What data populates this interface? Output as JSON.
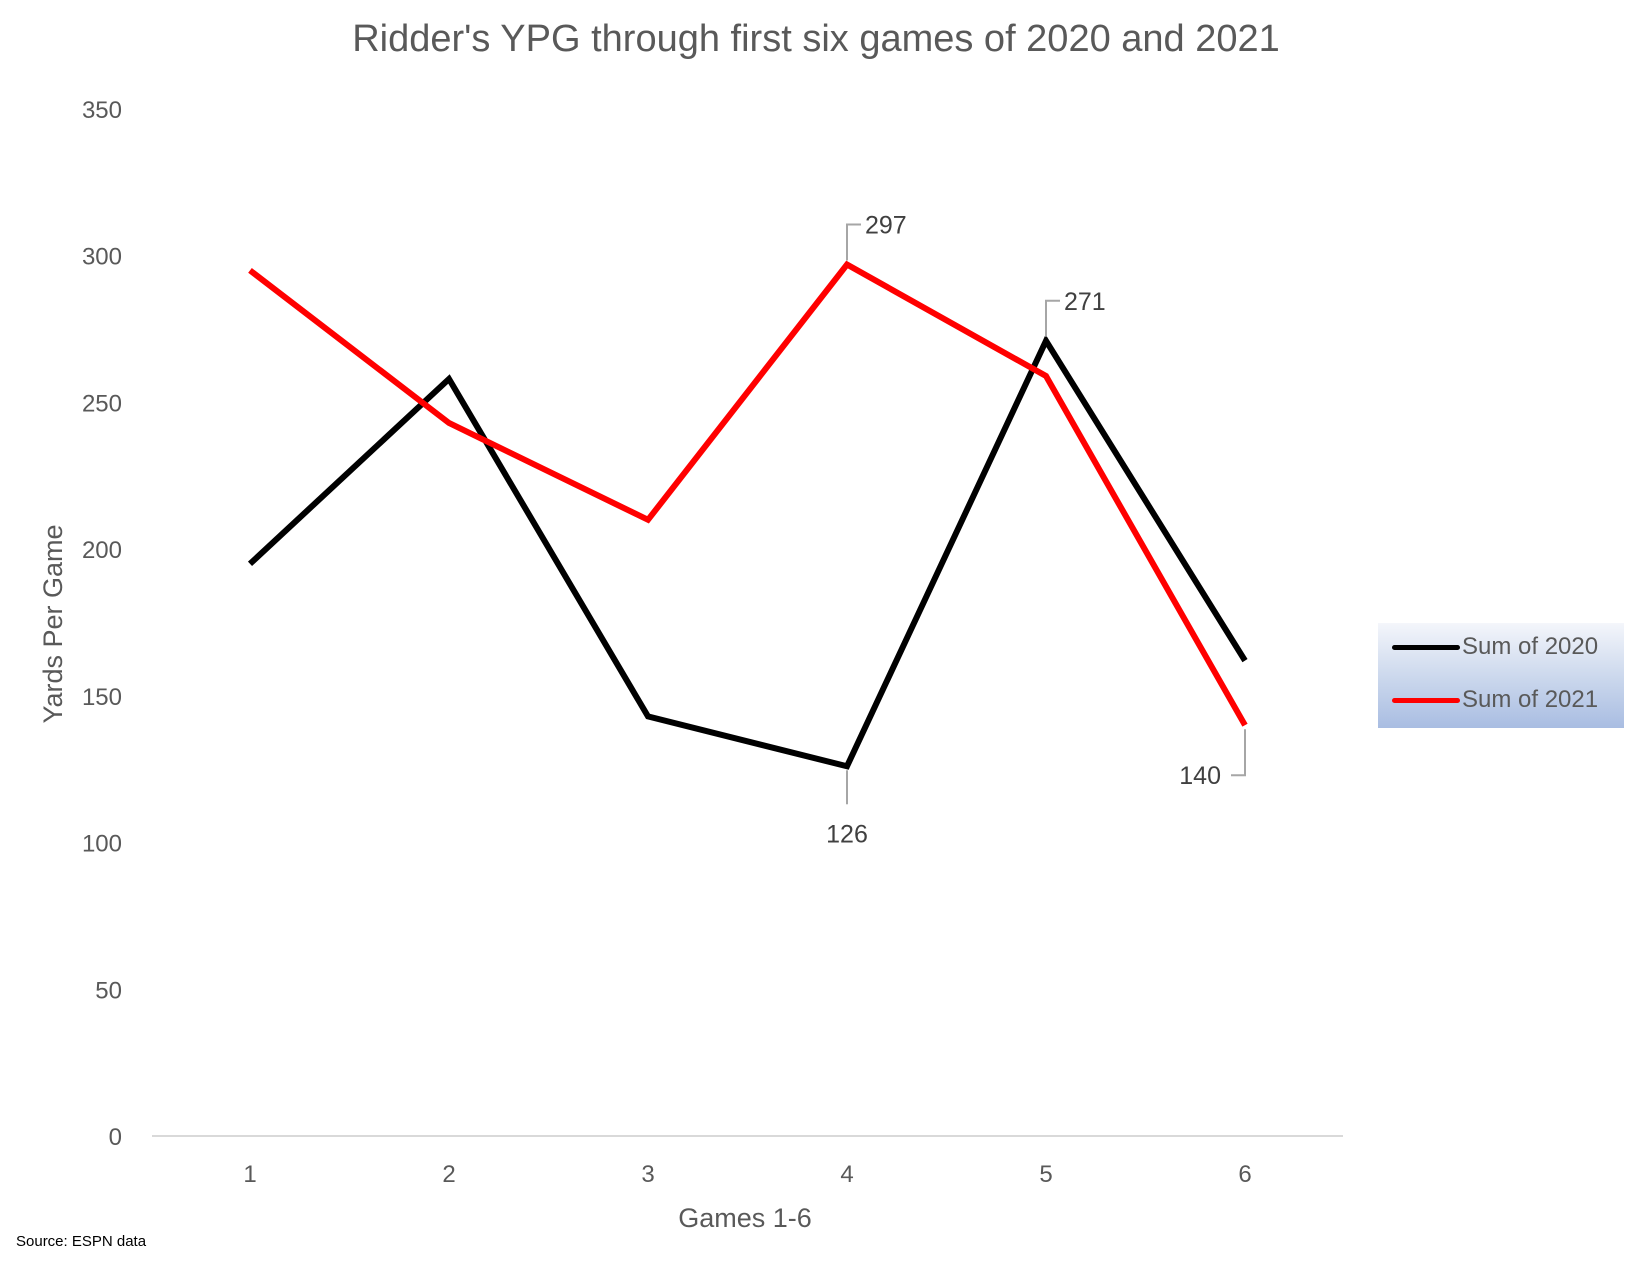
{
  "chart_data": {
    "type": "line",
    "title": "Ridder's YPG through first six games of 2020 and 2021",
    "xlabel": "Games 1-6",
    "ylabel": "Yards Per Game",
    "categories": [
      "1",
      "2",
      "3",
      "4",
      "5",
      "6"
    ],
    "ylim": [
      0,
      350
    ],
    "yticks": [
      0,
      50,
      100,
      150,
      200,
      250,
      300,
      350
    ],
    "grid": false,
    "legend_position": "right",
    "series": [
      {
        "name": "Sum of 2020",
        "color": "#000000",
        "values": [
          195,
          258,
          143,
          126,
          271,
          162
        ]
      },
      {
        "name": "Sum of 2021",
        "color": "#ff0000",
        "values": [
          295,
          243,
          210,
          297,
          259,
          140
        ]
      }
    ],
    "data_labels": [
      {
        "series": 1,
        "index": 3,
        "text": "297",
        "side": "above"
      },
      {
        "series": 0,
        "index": 4,
        "text": "271",
        "side": "above"
      },
      {
        "series": 0,
        "index": 3,
        "text": "126",
        "side": "below"
      },
      {
        "series": 1,
        "index": 5,
        "text": "140",
        "side": "below-left"
      }
    ]
  },
  "source_note": "Source: ESPN data"
}
